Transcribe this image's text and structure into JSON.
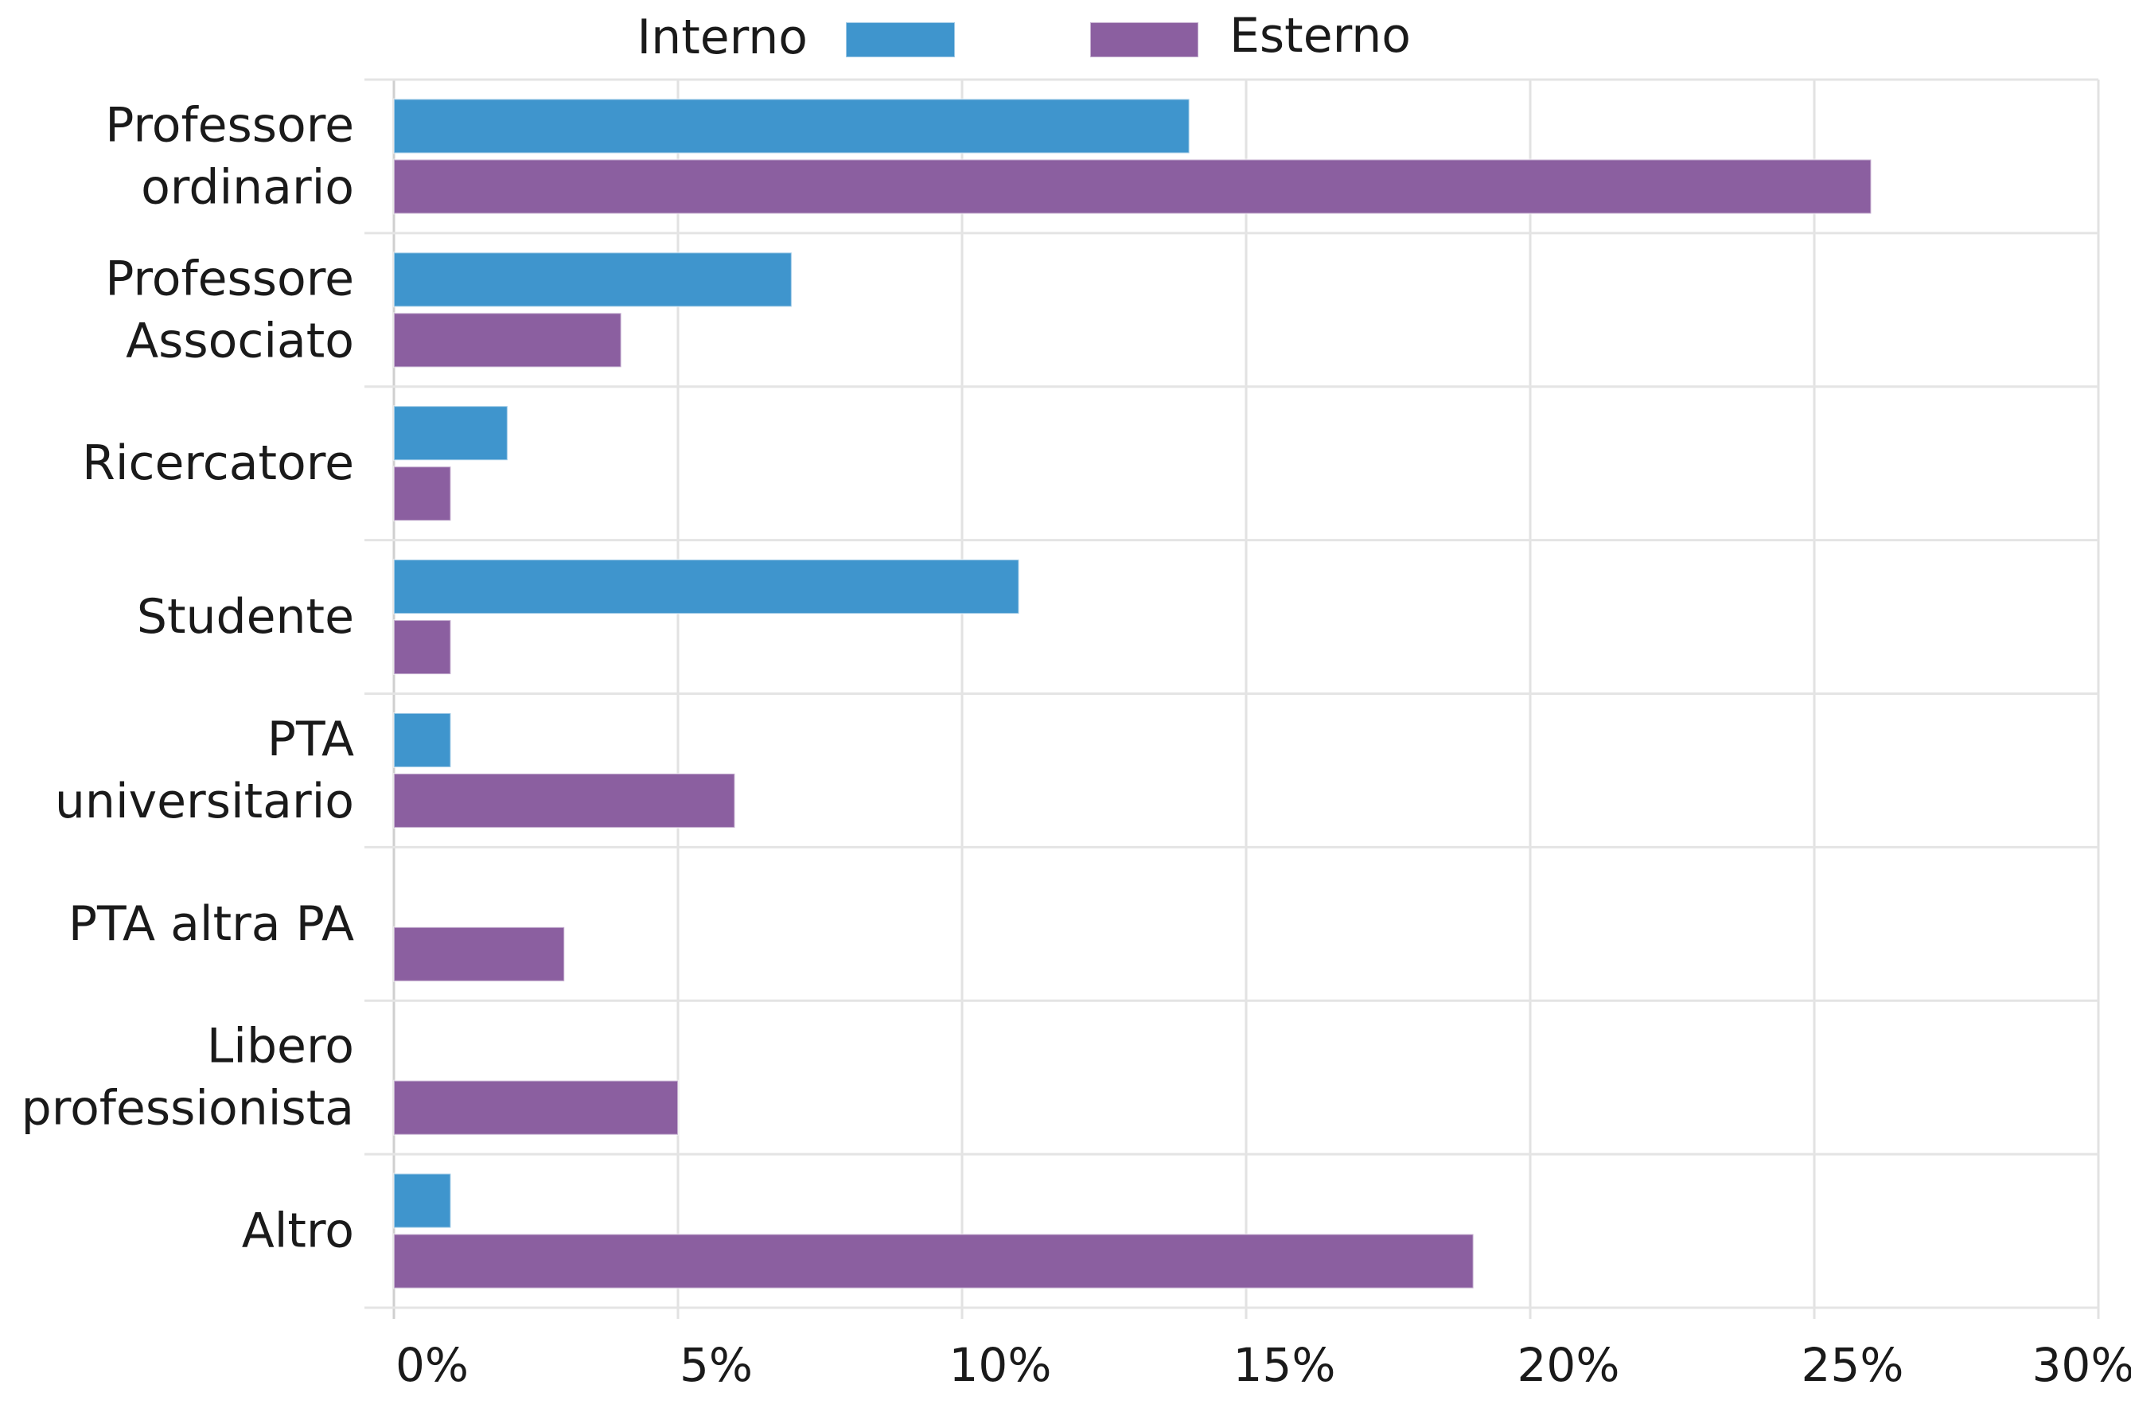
{
  "chart_data": {
    "type": "bar",
    "orientation": "horizontal",
    "categories": [
      [
        "Professore",
        "ordinario"
      ],
      [
        "Professore",
        "Associato"
      ],
      [
        "Ricercatore"
      ],
      [
        "Studente"
      ],
      [
        "PTA",
        "universitario"
      ],
      [
        "PTA altra PA"
      ],
      [
        "Libero",
        "professionista"
      ],
      [
        "Altro"
      ]
    ],
    "series": [
      {
        "name": "Interno",
        "color": "#3f95cd",
        "values": [
          14,
          7,
          2,
          11,
          1,
          0,
          0,
          1
        ]
      },
      {
        "name": "Esterno",
        "color": "#8b5fa0",
        "values": [
          26,
          4,
          1,
          1,
          6,
          3,
          5,
          19
        ]
      }
    ],
    "xlim": [
      0,
      30
    ],
    "xticks": [
      0,
      5,
      10,
      15,
      20,
      25,
      30
    ],
    "xtick_labels": [
      "0%",
      "5%",
      "10%",
      "15%",
      "20%",
      "25%",
      "30%"
    ],
    "legend_position": "top",
    "grid": true
  }
}
